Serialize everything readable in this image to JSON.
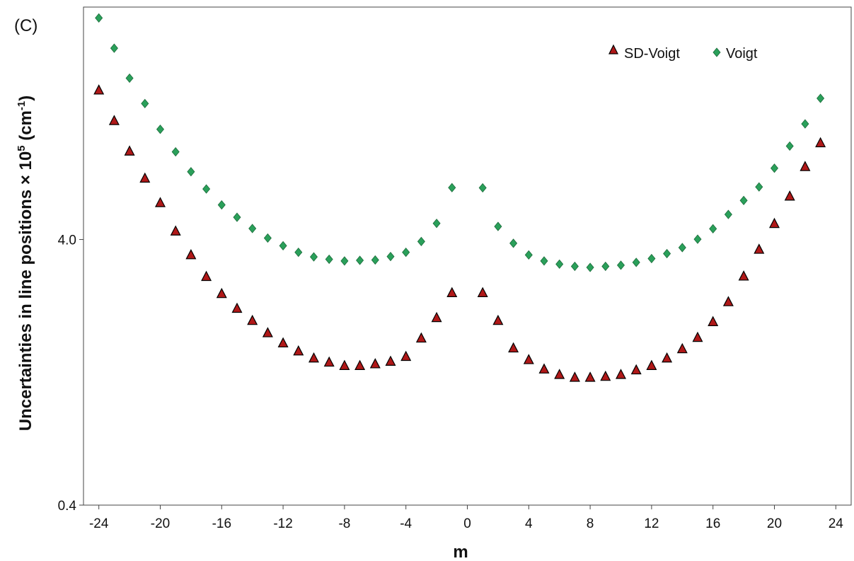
{
  "chart_data": {
    "type": "scatter",
    "panel_label": "(C)",
    "xlabel": "m",
    "ylabel_main": "Uncertainties in line positions × 10",
    "ylabel_sup": "5",
    "ylabel_unit_open": " (cm",
    "ylabel_unit_sup": "-1",
    "ylabel_unit_close": ")",
    "xlim": [
      -25,
      25
    ],
    "xticks": [
      -24,
      -20,
      -16,
      -12,
      -8,
      -4,
      0,
      4,
      8,
      12,
      16,
      20,
      24
    ],
    "x_tick_labels": [
      "-24",
      "-20",
      "-16",
      "-12",
      "-8",
      "-4",
      "0",
      "4",
      "8",
      "12",
      "16",
      "20",
      "24"
    ],
    "y_scale": "log",
    "ylim": [
      0.4,
      30
    ],
    "y_tick_values": [
      0.4,
      4.0
    ],
    "y_tick_labels": [
      "0.4",
      "4.0"
    ],
    "grid": false,
    "legend_position": "top-right",
    "series": [
      {
        "name": "SD-Voigt",
        "marker": "triangle",
        "color": "#b01818",
        "x": [
          -24,
          -23,
          -22,
          -21,
          -20,
          -19,
          -18,
          -17,
          -16,
          -15,
          -14,
          -13,
          -12,
          -11,
          -10,
          -9,
          -8,
          -7,
          -6,
          -5,
          -4,
          -3,
          -2,
          -1,
          1,
          2,
          3,
          4,
          5,
          6,
          7,
          8,
          9,
          10,
          11,
          12,
          13,
          14,
          15,
          16,
          17,
          18,
          19,
          20,
          21,
          22,
          23
        ],
        "y": [
          14.6,
          11.2,
          8.6,
          6.8,
          5.5,
          4.3,
          3.5,
          2.9,
          2.5,
          2.2,
          1.98,
          1.78,
          1.63,
          1.52,
          1.43,
          1.38,
          1.34,
          1.34,
          1.36,
          1.39,
          1.45,
          1.7,
          2.03,
          2.52,
          2.52,
          1.98,
          1.56,
          1.41,
          1.3,
          1.24,
          1.21,
          1.21,
          1.22,
          1.24,
          1.29,
          1.34,
          1.43,
          1.55,
          1.71,
          1.96,
          2.33,
          2.91,
          3.67,
          4.59,
          5.82,
          7.52,
          9.24
        ]
      },
      {
        "name": "Voigt",
        "marker": "diamond",
        "color": "#2aa05a",
        "x": [
          -24,
          -23,
          -22,
          -21,
          -20,
          -19,
          -18,
          -17,
          -16,
          -15,
          -14,
          -13,
          -12,
          -11,
          -10,
          -9,
          -8,
          -7,
          -6,
          -5,
          -4,
          -3,
          -2,
          -1,
          1,
          2,
          3,
          4,
          5,
          6,
          7,
          8,
          9,
          10,
          11,
          12,
          13,
          14,
          15,
          16,
          17,
          18,
          19,
          20,
          21,
          22,
          23
        ],
        "y": [
          27.3,
          21.0,
          16.2,
          13.0,
          10.4,
          8.55,
          7.2,
          6.2,
          5.4,
          4.85,
          4.4,
          4.05,
          3.79,
          3.58,
          3.44,
          3.37,
          3.32,
          3.34,
          3.35,
          3.45,
          3.58,
          3.93,
          4.6,
          6.27,
          6.26,
          4.48,
          3.87,
          3.5,
          3.32,
          3.23,
          3.17,
          3.14,
          3.17,
          3.2,
          3.28,
          3.39,
          3.54,
          3.73,
          4.01,
          4.39,
          4.97,
          5.61,
          6.31,
          7.42,
          8.99,
          10.9,
          13.6
        ]
      }
    ]
  }
}
